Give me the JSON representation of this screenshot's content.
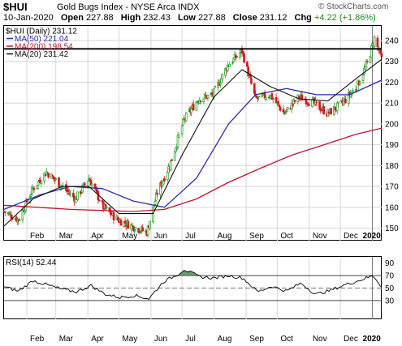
{
  "header": {
    "symbol": "$HUI",
    "name": "Gold Bugs Index - NYSE Arca INDX",
    "credit": "© StockCharts.com",
    "date": "10-Jan-2020",
    "open_label": "Open",
    "open": "227.88",
    "high_label": "High",
    "high": "232.43",
    "low_label": "Low",
    "low": "227.88",
    "close_label": "Close",
    "close": "231.12",
    "chg_label": "Chg",
    "chg": "+4.22 (+1.86%)"
  },
  "colors": {
    "ma50": "#2c2ca8",
    "ma200": "#c0142b",
    "ma20": "#111111",
    "up": "#1a9a1a",
    "down": "#cc1f1f",
    "rsi": "#000000",
    "rsi_fill": "#4e8a4e"
  },
  "chart_data": [
    {
      "type": "line",
      "name": "price",
      "legend": [
        {
          "name": "$HUI (Daily) 231.12",
          "color": "#000000"
        },
        {
          "name": "MA(50) 221.04",
          "color": "#2c2ca8"
        },
        {
          "name": "MA(200) 198.54",
          "color": "#c0142b"
        },
        {
          "name": "MA(20) 231.42",
          "color": "#111111"
        }
      ],
      "legend_position": "top-left",
      "x_labels": [
        "Feb",
        "Mar",
        "Apr",
        "May",
        "Jun",
        "Jul",
        "Aug",
        "Sep",
        "Oct",
        "Nov",
        "Dec",
        "2020"
      ],
      "x_label_dates": [
        "2019-02-01",
        "2019-03-01",
        "2019-04-01",
        "2019-05-01",
        "2019-06-01",
        "2019-07-01",
        "2019-08-01",
        "2019-09-01",
        "2019-10-01",
        "2019-11-01",
        "2019-12-01",
        "2020-01-01"
      ],
      "xlim": [
        "2019-01-10",
        "2020-01-10"
      ],
      "y_ticks": [
        150,
        160,
        170,
        180,
        190,
        200,
        210,
        220,
        230,
        240
      ],
      "ylim": [
        144,
        247
      ],
      "grid": true,
      "horizontal_line": 236,
      "close": {
        "x": [
          "2019-01-10",
          "2019-01-24",
          "2019-02-07",
          "2019-02-20",
          "2019-03-05",
          "2019-03-20",
          "2019-04-02",
          "2019-04-16",
          "2019-04-30",
          "2019-05-14",
          "2019-05-28",
          "2019-06-07",
          "2019-06-19",
          "2019-07-03",
          "2019-07-17",
          "2019-07-31",
          "2019-08-14",
          "2019-08-28",
          "2019-09-10",
          "2019-09-24",
          "2019-10-08",
          "2019-10-22",
          "2019-11-05",
          "2019-11-19",
          "2019-12-03",
          "2019-12-17",
          "2019-12-27",
          "2020-01-03",
          "2020-01-10"
        ],
        "y": [
          158,
          154,
          169,
          177,
          171,
          164,
          174,
          160,
          154,
          151,
          148,
          167,
          180,
          202,
          212,
          214,
          228,
          235,
          212,
          214,
          205,
          213,
          210,
          205,
          210,
          218,
          229,
          241,
          231
        ]
      },
      "ma20": {
        "x": [
          "2019-01-10",
          "2019-02-07",
          "2019-03-07",
          "2019-04-02",
          "2019-05-01",
          "2019-06-03",
          "2019-07-01",
          "2019-08-01",
          "2019-08-28",
          "2019-09-24",
          "2019-10-22",
          "2019-11-19",
          "2019-12-17",
          "2020-01-10"
        ],
        "y": [
          151,
          164,
          170,
          170,
          157,
          157,
          185,
          213,
          226,
          218,
          212,
          211,
          222,
          231
        ]
      },
      "ma50": {
        "x": [
          "2019-01-10",
          "2019-02-14",
          "2019-03-15",
          "2019-04-15",
          "2019-05-15",
          "2019-06-14",
          "2019-07-15",
          "2019-08-15",
          "2019-09-10",
          "2019-10-10",
          "2019-11-08",
          "2019-12-10",
          "2020-01-10"
        ],
        "y": [
          159,
          166,
          170,
          169,
          163,
          160,
          174,
          200,
          214,
          217,
          214,
          214,
          221
        ]
      },
      "ma200": {
        "x": [
          "2019-01-10",
          "2019-03-15",
          "2019-05-15",
          "2019-06-14",
          "2019-07-15",
          "2019-08-15",
          "2019-09-16",
          "2019-10-15",
          "2019-11-15",
          "2019-12-16",
          "2020-01-10"
        ],
        "y": [
          161,
          159,
          158,
          159,
          164,
          172,
          179,
          185,
          190,
          195,
          198
        ]
      }
    },
    {
      "type": "line",
      "name": "rsi",
      "legend": [
        {
          "name": "RSI(14) 52.44",
          "color": "#000000"
        }
      ],
      "y_ticks": [
        30,
        50,
        70,
        90
      ],
      "ylim": [
        0,
        100
      ],
      "reference_lines": [
        70,
        50,
        30
      ],
      "x": [
        "2019-01-10",
        "2019-01-24",
        "2019-02-07",
        "2019-02-21",
        "2019-03-07",
        "2019-03-21",
        "2019-04-04",
        "2019-04-18",
        "2019-05-02",
        "2019-05-16",
        "2019-05-30",
        "2019-06-13",
        "2019-06-27",
        "2019-07-03",
        "2019-07-18",
        "2019-08-01",
        "2019-08-15",
        "2019-08-29",
        "2019-09-12",
        "2019-09-26",
        "2019-10-10",
        "2019-10-24",
        "2019-11-07",
        "2019-11-21",
        "2019-12-05",
        "2019-12-19",
        "2020-01-02",
        "2020-01-10"
      ],
      "y": [
        52,
        45,
        62,
        55,
        48,
        44,
        54,
        40,
        35,
        38,
        33,
        60,
        72,
        80,
        68,
        66,
        70,
        66,
        44,
        53,
        45,
        58,
        40,
        46,
        55,
        62,
        70,
        52
      ]
    }
  ]
}
